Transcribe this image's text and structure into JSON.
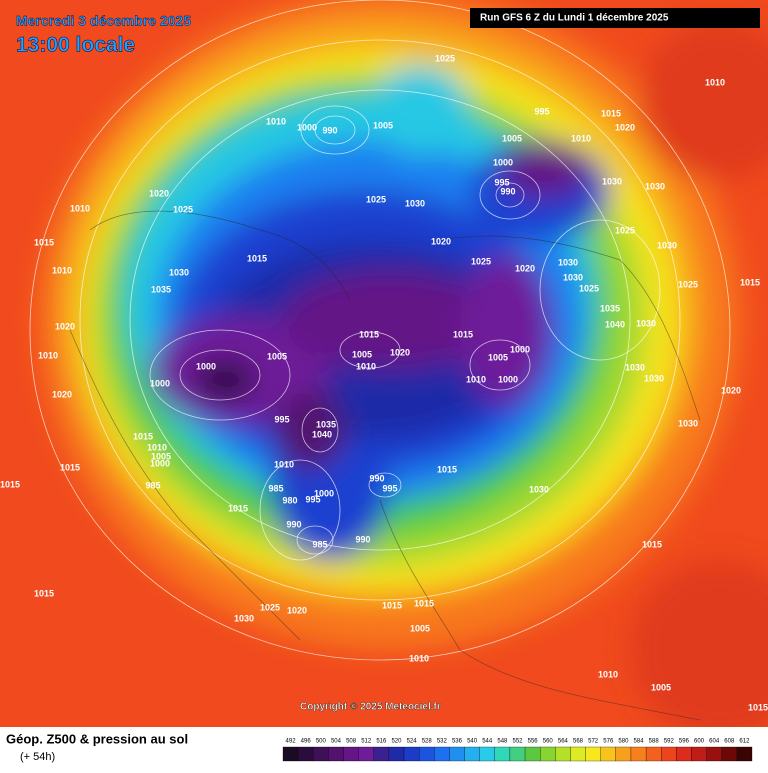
{
  "header": {
    "title": "Mercredi 3 décembre 2025",
    "time": "13:00 locale",
    "run": "Run GFS 6 Z du Lundi 1 décembre 2025"
  },
  "copyright": "Copyright © 2025 Meteociel.fr",
  "footer": {
    "title": "Géop. Z500 & pression au sol",
    "lead": "(+ 54h)"
  },
  "isobar_labels": [
    1025,
    1010,
    1010,
    1000,
    990,
    1005,
    995,
    1015,
    1020,
    1005,
    1010,
    1000,
    995,
    990,
    1030,
    1030,
    1020,
    1025,
    1025,
    1030,
    1010,
    1015,
    1015,
    1020,
    1025,
    1020,
    1030,
    1030,
    1025,
    1030,
    1025,
    1030,
    1035,
    1010,
    1015,
    1025,
    1035,
    1040,
    1030,
    1015,
    1015,
    1005,
    1005,
    1020,
    1010,
    1000,
    1000,
    1005,
    1000,
    1010,
    1000,
    1030,
    1030,
    1020,
    1010,
    1020,
    1020,
    995,
    1035,
    1040,
    1030,
    1015,
    1010,
    1005,
    1000,
    1015,
    1010,
    1015,
    990,
    995,
    985,
    980,
    1000,
    995,
    1030,
    1015,
    990,
    1015,
    985,
    990,
    985,
    1015,
    1015,
    1025,
    1020,
    1030,
    1015,
    1015,
    1005,
    1010,
    1010,
    1005,
    1015
  ],
  "colorbar": {
    "ticks": [
      492,
      496,
      500,
      504,
      508,
      512,
      516,
      520,
      524,
      528,
      532,
      536,
      540,
      544,
      548,
      552,
      556,
      560,
      564,
      568,
      572,
      576,
      580,
      584,
      588,
      592,
      596,
      600,
      604,
      608,
      612
    ],
    "colors": [
      "#1a0a24",
      "#2c0c3c",
      "#3e1056",
      "#52126e",
      "#641686",
      "#6e1c9a",
      "#3a2090",
      "#1e2aa8",
      "#1c3cc8",
      "#1c54e0",
      "#1e70f0",
      "#2090f0",
      "#24b0f0",
      "#28cce8",
      "#30d8b8",
      "#40d080",
      "#5cc840",
      "#88d430",
      "#b4e028",
      "#dcec20",
      "#f6e81c",
      "#f8c41c",
      "#f8a01c",
      "#f8801c",
      "#f4601e",
      "#ee441e",
      "#dc2c1c",
      "#c01c18",
      "#981010",
      "#6c0808",
      "#3a0404"
    ]
  }
}
